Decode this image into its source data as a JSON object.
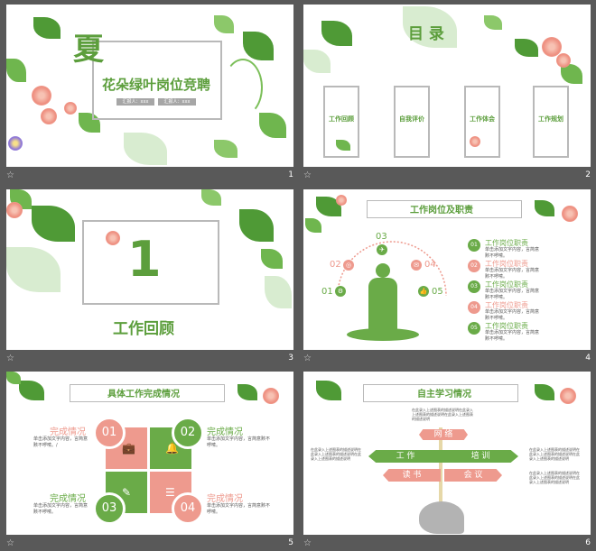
{
  "colors": {
    "green": "#6aab48",
    "pink": "#ee9a8e",
    "gray": "#b9b9b9"
  },
  "slides": [
    {
      "number": "1",
      "title_big": "夏",
      "title": "花朵绿叶岗位竞聘",
      "subtitle_left": "汇报人：xxx",
      "subtitle_right": "汇报人：xxx"
    },
    {
      "number": "2",
      "title": "目 录",
      "items": [
        "工作回顾",
        "自我评价",
        "工作体会",
        "工作规划"
      ]
    },
    {
      "number": "3",
      "big_number": "1",
      "title": "工作回顾"
    },
    {
      "number": "4",
      "title": "工作岗位及职责",
      "nodes": [
        "01",
        "02",
        "03",
        "04",
        "05"
      ],
      "list": [
        {
          "n": "01",
          "head": "工作岗位职责",
          "body": "单击添加文字内容，言简意赅不啰嗦。"
        },
        {
          "n": "02",
          "head": "工作岗位职责",
          "body": "单击添加文字内容，言简意赅不啰嗦。"
        },
        {
          "n": "03",
          "head": "工作岗位职责",
          "body": "单击添加文字内容，言简意赅不啰嗦。"
        },
        {
          "n": "04",
          "head": "工作岗位职责",
          "body": "单击添加文字内容，言简意赅不啰嗦。"
        },
        {
          "n": "05",
          "head": "工作岗位职责",
          "body": "单击添加文字内容，言简意赅不啰嗦。"
        }
      ]
    },
    {
      "number": "5",
      "title": "具体工作完成情况",
      "quads": [
        {
          "n": "01",
          "head": "完成情况",
          "body": "单击添加文字内容，言简意赅不啰嗦。/"
        },
        {
          "n": "02",
          "head": "完成情况",
          "body": "单击添加文字内容，言简意赅不啰嗦。"
        },
        {
          "n": "03",
          "head": "完成情况",
          "body": "单击添加文字内容，言简意赅不啰嗦。"
        },
        {
          "n": "04",
          "head": "完成情况",
          "body": "单击添加文字内容，言简意赅不啰嗦。"
        }
      ]
    },
    {
      "number": "6",
      "title": "自主学习情况",
      "signs": [
        "网 络",
        "工 作",
        "培 训",
        "读 书",
        "会 议"
      ],
      "note": "在此录入上述图表的描述说明在此录入上述图表的描述说明在此录入上述图表的描述说明"
    }
  ]
}
